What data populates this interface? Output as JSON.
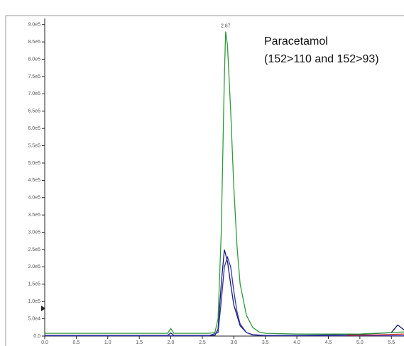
{
  "chart_data": {
    "type": "line",
    "annotations": [
      "Paracetamol",
      "(152>110 and 152>93)"
    ],
    "peak_label": {
      "text": "2.87",
      "x": 2.87,
      "y": 880000
    },
    "xlim": [
      0,
      5.7
    ],
    "ylim": [
      0,
      920000
    ],
    "xticks": [
      {
        "value": 0,
        "label": "0.0"
      },
      0.5,
      {
        "value": 1,
        "label": "1.0"
      },
      1.5,
      {
        "value": 2,
        "label": "2.0"
      },
      2.5,
      {
        "value": 3,
        "label": "3.0"
      },
      3.5,
      {
        "value": 4,
        "label": "4.0"
      },
      4.5,
      {
        "value": 5,
        "label": "5.0"
      },
      5.5
    ],
    "yticks": [
      {
        "value": 0,
        "label": "0.0"
      },
      {
        "value": 50000,
        "label": "5.0e4"
      },
      {
        "value": 100000,
        "label": "1.0e5"
      },
      {
        "value": 150000,
        "label": "1.5e5"
      },
      {
        "value": 200000,
        "label": "2.0e5"
      },
      {
        "value": 250000,
        "label": "2.5e5"
      },
      {
        "value": 300000,
        "label": "3.0e5"
      },
      {
        "value": 350000,
        "label": "3.5e5"
      },
      {
        "value": 400000,
        "label": "4.0e5"
      },
      {
        "value": 450000,
        "label": "4.5e5"
      },
      {
        "value": 500000,
        "label": "5.0e5"
      },
      {
        "value": 550000,
        "label": "5.5e5"
      },
      {
        "value": 600000,
        "label": "6.0e5"
      },
      {
        "value": 650000,
        "label": "6.5e5"
      },
      {
        "value": 700000,
        "label": "7.0e5"
      },
      {
        "value": 750000,
        "label": "7.5e5"
      },
      {
        "value": 800000,
        "label": "8.0e5"
      },
      {
        "value": 850000,
        "label": "8.5e5"
      },
      {
        "value": 900000,
        "label": "9.0e5"
      }
    ],
    "series": [
      {
        "color": "#1a1a6e",
        "x": [
          0,
          1.95,
          2.0,
          2.05,
          2.6,
          2.7,
          2.75,
          2.8,
          2.85,
          2.9,
          2.95,
          3.0,
          3.1,
          3.2,
          3.3,
          3.5,
          4.0,
          5.0,
          5.5,
          5.6,
          5.7
        ],
        "values": [
          2000,
          2000,
          9000,
          2000,
          2000,
          2000,
          20000,
          150000,
          250000,
          215000,
          150000,
          90000,
          30000,
          10000,
          4000,
          2000,
          2000,
          5000,
          10000,
          32000,
          18000
        ]
      },
      {
        "color": "#3333aa",
        "x": [
          0,
          2.6,
          2.75,
          2.8,
          2.85,
          2.9,
          2.95,
          3.0,
          3.05,
          3.1,
          3.2,
          3.3,
          3.5,
          5.7
        ],
        "values": [
          1000,
          1000,
          10000,
          100000,
          200000,
          228000,
          200000,
          130000,
          70000,
          35000,
          10000,
          3000,
          1000,
          1000
        ]
      },
      {
        "color": "#cc2222",
        "x": [
          4.8,
          5.2,
          5.7
        ],
        "values": [
          2000,
          3000,
          6000
        ]
      },
      {
        "color": "#2e9a3a",
        "x": [
          0,
          1.95,
          2.0,
          2.05,
          2.6,
          2.7,
          2.75,
          2.8,
          2.85,
          2.87,
          2.9,
          2.95,
          3.0,
          3.05,
          3.1,
          3.2,
          3.3,
          3.4,
          3.5,
          4.0,
          5.0,
          5.5,
          5.7
        ],
        "values": [
          8000,
          8000,
          22000,
          8000,
          8000,
          10000,
          50000,
          300000,
          750000,
          880000,
          840000,
          650000,
          430000,
          260000,
          150000,
          60000,
          25000,
          12000,
          8000,
          6000,
          6000,
          10000,
          12000
        ]
      }
    ]
  }
}
